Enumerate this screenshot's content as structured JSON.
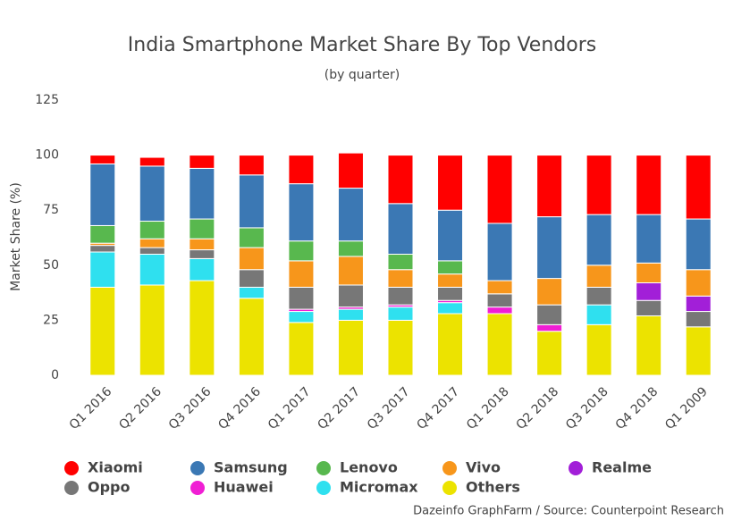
{
  "chart_data": {
    "type": "stacked-bar",
    "title": "India Smartphone Market Share By Top Vendors",
    "subtitle": "(by quarter)",
    "y_label": "Market Share (%)",
    "source": "Dazeinfo GraphFarm / Source: Counterpoint Research",
    "categories": [
      "Q1 2016",
      "Q2 2016",
      "Q3 2016",
      "Q4 2016",
      "Q1 2017",
      "Q2 2017",
      "Q3 2017",
      "Q4 2017",
      "Q1 2018",
      "Q2 2018",
      "Q3 2018",
      "Q4 2018",
      "Q1 2009"
    ],
    "ylim": [
      0,
      125
    ],
    "yticks": [
      0,
      25,
      50,
      75,
      100,
      125
    ],
    "series": [
      {
        "name": "Others",
        "color": "#ece300",
        "values": [
          40,
          41,
          43,
          35,
          24,
          25,
          25,
          28,
          28,
          20,
          23,
          27,
          22
        ]
      },
      {
        "name": "Micromax",
        "color": "#2fe0ef",
        "values": [
          16,
          14,
          10,
          5,
          5,
          5,
          6,
          5,
          0,
          0,
          9,
          0,
          0
        ]
      },
      {
        "name": "Huawei",
        "color": "#f01ed4",
        "values": [
          0,
          0,
          0,
          0,
          1,
          1,
          1,
          1,
          3,
          3,
          0,
          0,
          0
        ]
      },
      {
        "name": "Oppo",
        "color": "#777777",
        "values": [
          3,
          3,
          4,
          8,
          10,
          10,
          8,
          6,
          6,
          9,
          8,
          7,
          7
        ]
      },
      {
        "name": "Realme",
        "color": "#a21fd8",
        "values": [
          0,
          0,
          0,
          0,
          0,
          0,
          0,
          0,
          0,
          0,
          0,
          8,
          7
        ]
      },
      {
        "name": "Vivo",
        "color": "#f7961b",
        "values": [
          1,
          4,
          5,
          10,
          12,
          13,
          8,
          6,
          6,
          12,
          10,
          9,
          12
        ]
      },
      {
        "name": "Lenovo",
        "color": "#58b84e",
        "values": [
          8,
          8,
          9,
          9,
          9,
          7,
          7,
          6,
          0,
          0,
          0,
          0,
          0
        ]
      },
      {
        "name": "Samsung",
        "color": "#3b78b4",
        "values": [
          28,
          25,
          23,
          24,
          26,
          24,
          23,
          23,
          26,
          28,
          23,
          22,
          23
        ]
      },
      {
        "name": "Xiaomi",
        "color": "#ff0000",
        "values": [
          4,
          4,
          6,
          9,
          13,
          16,
          22,
          25,
          31,
          28,
          27,
          27,
          29
        ]
      }
    ],
    "legend_order": [
      "Xiaomi",
      "Samsung",
      "Lenovo",
      "Vivo",
      "Realme",
      "Oppo",
      "Huawei",
      "Micromax",
      "Others"
    ]
  }
}
